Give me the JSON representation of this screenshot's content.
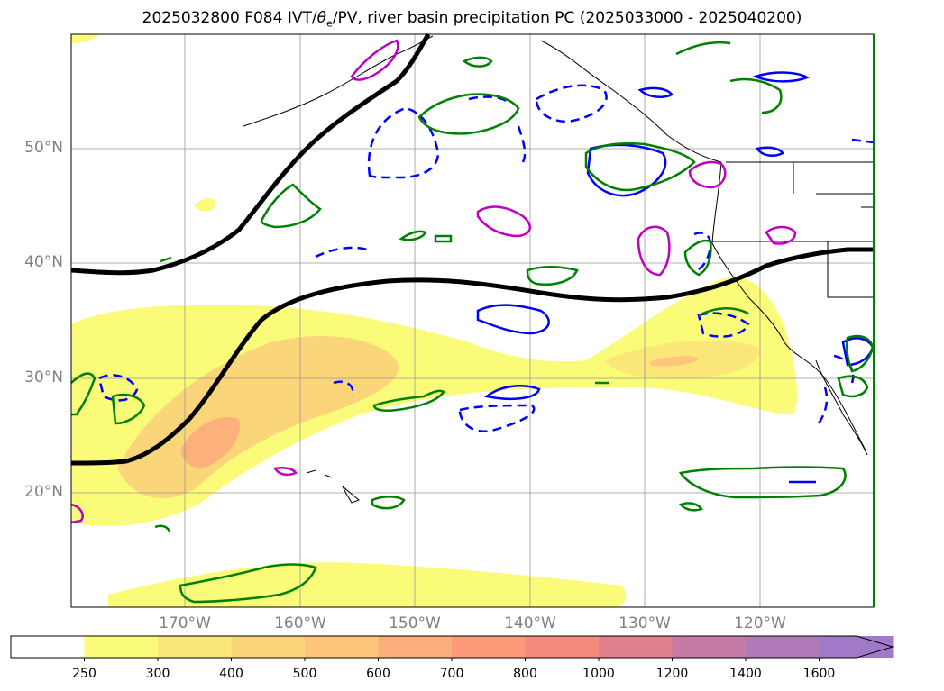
{
  "title": {
    "prefix": "2025032800 F084 IVT/",
    "theta": "θ",
    "theta_sub": "e",
    "suffix": "/PV, river basin precipitation PC (2025033000 - 2025040200)"
  },
  "map": {
    "lat_labels": [
      "50°N",
      "40°N",
      "30°N",
      "20°N"
    ],
    "lon_labels": [
      "170°W",
      "160°W",
      "150°W",
      "140°W",
      "130°W",
      "120°W"
    ]
  },
  "colorbar": {
    "levels": [
      "250",
      "300",
      "400",
      "500",
      "600",
      "700",
      "800",
      "1000",
      "1200",
      "1400",
      "1600"
    ],
    "colors": [
      "#ffffff",
      "#fbfb7a",
      "#fbe67a",
      "#fbd57a",
      "#fcc57a",
      "#fcae7a",
      "#fc9a7a",
      "#f58a7e",
      "#e07f8e",
      "#c67aa6",
      "#b07ab8",
      "#a07ac8"
    ]
  },
  "colors": {
    "ivt_fill": "#fbfb7a",
    "ivt_mid": "#fbd57a",
    "ivt_high": "#fcb07a",
    "pv_line": "#000000",
    "theta_pos": "#0000ff",
    "precip_pc": "#008000",
    "magenta": "#c000c0"
  }
}
